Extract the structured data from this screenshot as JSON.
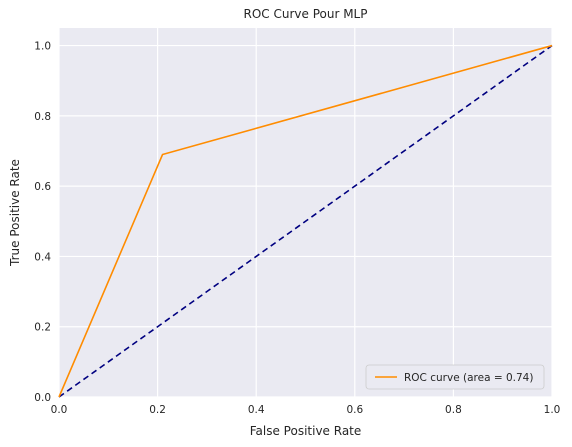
{
  "chart_data": {
    "type": "line",
    "title": "ROC Curve Pour MLP",
    "xlabel": "False Positive Rate",
    "ylabel": "True Positive Rate",
    "xlim": [
      0.0,
      1.0
    ],
    "ylim": [
      0.0,
      1.05
    ],
    "xticks": [
      0.0,
      0.2,
      0.4,
      0.6,
      0.8,
      1.0
    ],
    "yticks": [
      0.0,
      0.2,
      0.4,
      0.6,
      0.8,
      1.0
    ],
    "xtick_labels": [
      "0.0",
      "0.2",
      "0.4",
      "0.6",
      "0.8",
      "1.0"
    ],
    "ytick_labels": [
      "0.0",
      "0.2",
      "0.4",
      "0.6",
      "0.8",
      "1.0"
    ],
    "grid": true,
    "legend_position": "lower-right",
    "series": [
      {
        "name": "ROC curve (area = 0.74)",
        "color": "#ff8c00",
        "style": "solid",
        "x": [
          0.0,
          0.21,
          1.0
        ],
        "y": [
          0.0,
          0.69,
          1.0
        ]
      },
      {
        "color": "#000080",
        "style": "dashed",
        "x": [
          0.0,
          1.0
        ],
        "y": [
          0.0,
          1.0
        ]
      }
    ],
    "colors": {
      "plot_background": "#eaeaf2",
      "grid": "#ffffff"
    }
  }
}
